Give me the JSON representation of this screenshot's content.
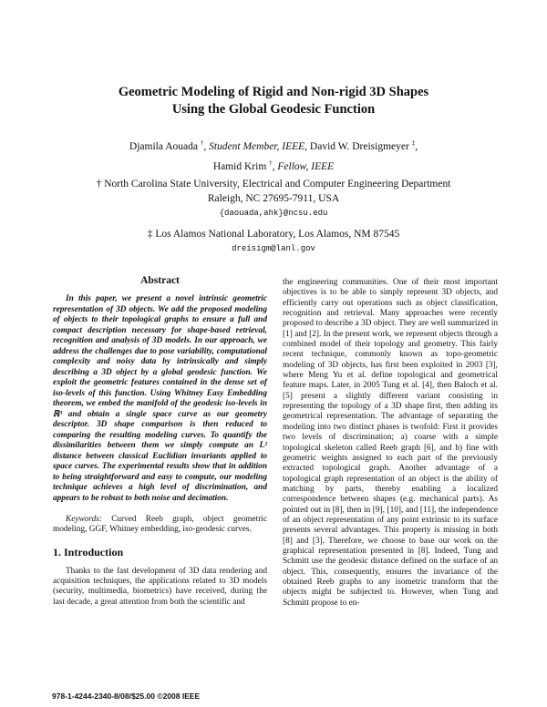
{
  "header": {
    "title_lines": [
      "Geometric Modeling of Rigid and Non-rigid 3D Shapes",
      "Using the Global Geodesic Function"
    ],
    "author_line1": [
      "Djamila Aouada",
      "†",
      ", ",
      "Student Member, IEEE",
      ", David W. Dreisigmeyer",
      "‡",
      ","
    ],
    "author_line2": [
      "Hamid Krim",
      "†",
      ", ",
      "Fellow, IEEE"
    ],
    "affiliation1": [
      "† North Carolina State University, Electrical and Computer Engineering Department",
      "Raleigh, NC 27695-7911, USA",
      "{daouada,ahk}@ncsu.edu"
    ],
    "affiliation2": [
      "‡ Los Alamos National Laboratory, Los Alamos, NM 87545",
      "dreisigm@lanl.gov"
    ]
  },
  "abstract": {
    "heading": "Abstract",
    "text": "In this paper, we present a novel intrinsic geometric representation of 3D objects. We add the proposed modeling of objects to their topological graphs to ensure a full and compact description necessary for shape-based retrieval, recognition and analysis of 3D models. In our approach, we address the challenges due to pose variability, computational complexity and noisy data by intrinsically and simply describing a 3D object by a global geodesic function. We exploit the geometric features contained in the dense set of iso-levels of this function. Using Whitney Easy Embedding theorem, we embed the manifold of the geodesic iso-levels in ℝ³ and obtain a single space curve as our geometry descriptor. 3D shape comparison is then reduced to comparing the resulting modeling curves. To quantify the dissimilarities between them we simply compute an L² distance between classical Euclidian invariants applied to space curves. The experimental results show that in addition to being straightforward and easy to compute, our modeling technique achieves a high level of discrimination, and appears to be robust to both noise and decimation."
  },
  "keywords": {
    "label": "Keywords:",
    "text": "Curved Reeb graph, object geometric modeling, GGF, Whitney embedding, iso-geodesic curves."
  },
  "introduction": {
    "heading": "1. Introduction",
    "left": "Thanks to the fast development of 3D data rendering and acquisition techniques, the applications related to 3D models (security, multimedia, biometrics) have received, during the last decade, a great attention from both the scientific and",
    "right": "the engineering communities. One of their most important objectives is to be able to simply represent 3D objects, and efficiently carry out operations such as object classification, recognition and retrieval. Many approaches were recently proposed to describe a 3D object. They are well summarized in [1] and [2]. In the present work, we represent objects through a combined model of their topology and geometry. This fairly recent technique, commonly known as topo-geometric modeling of 3D objects, has first been exploited in 2003 [3], where Meng Yu et al. define topological and geometrical feature maps. Later, in 2005 Tung et al. [4], then Baloch et al. [5] present a slightly different variant consisting in representing the topology of a 3D shape first, then adding its geometrical representation. The advantage of separating the modeling into two distinct phases is twofold: First it provides two levels of discrimination; a) coarse with a simple topological skeleton called Reeb graph [6], and b) fine with geometric weights assigned to each part of the previously extracted topological graph. Another advantage of a topological graph representation of an object is the ability of matching by parts, thereby enabling a localized correspondence between shapes (e.g. mechanical parts). As pointed out in [8], then in [9], [10], and [11], the independence of an object representation of any point extrinsic to its surface presents several advantages. This property is missing in both [8] and [3]. Therefore, we choose to base our work on the graphical representation presented in [8]. Indeed, Tung and Schmitt use the geodesic distance defined on the surface of an object. This, consequently, ensures the invariance of the obtained Reeb graphs to any isometric transform that the objects might be subjected to. However, when Tung and Schmitt propose to en-"
  },
  "footer": "978-1-4244-2340-8/08/$25.00 ©2008 IEEE"
}
